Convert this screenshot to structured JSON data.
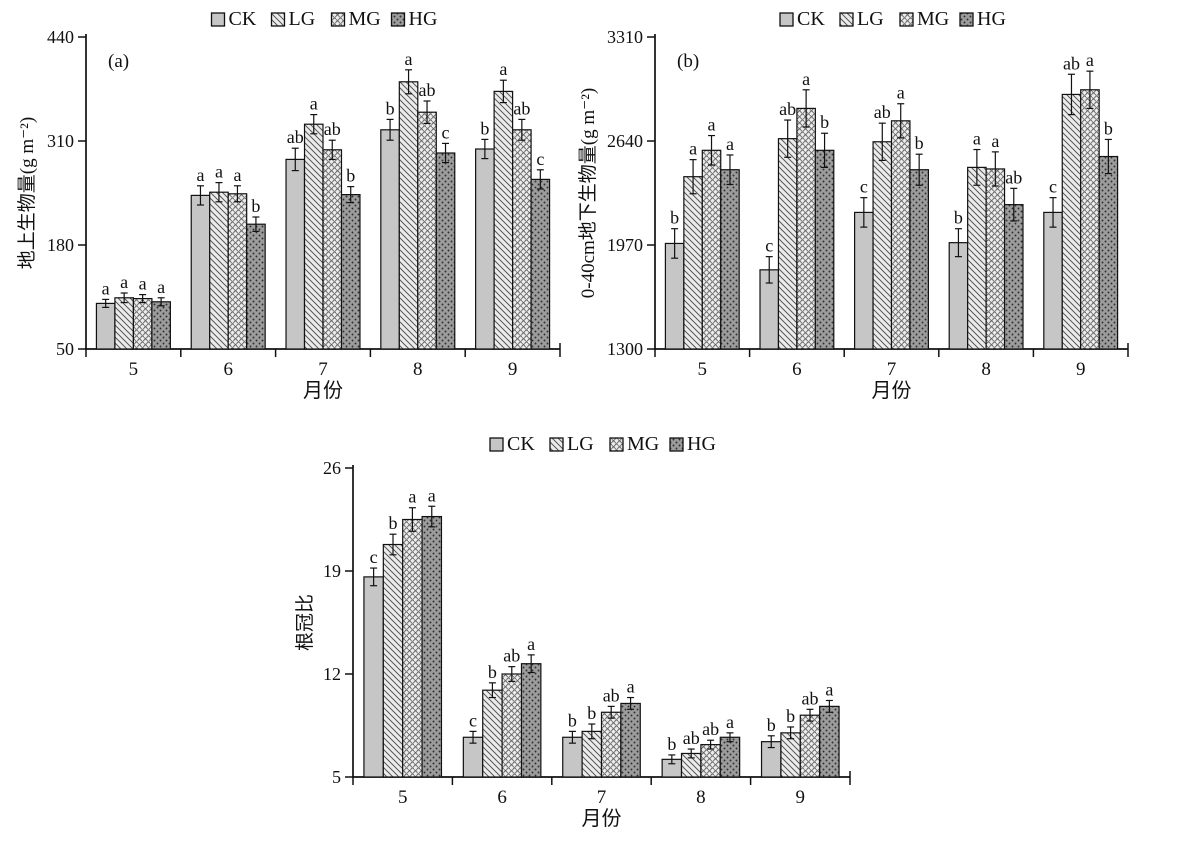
{
  "figure": {
    "background": "#ffffff",
    "axis_color": "#111111",
    "text_color": "#111111"
  },
  "legend": {
    "labels": [
      "CK",
      "LG",
      "MG",
      "HG"
    ]
  },
  "series_styles": [
    {
      "name": "CK",
      "pattern": "plain",
      "bg": "#c6c6c6",
      "fg": "#c6c6c6"
    },
    {
      "name": "LG",
      "pattern": "diagonal",
      "bg": "#ececec",
      "fg": "#575757"
    },
    {
      "name": "MG",
      "pattern": "scales",
      "bg": "#ececec",
      "fg": "#666666"
    },
    {
      "name": "HG",
      "pattern": "dots",
      "bg": "#9c9c9c",
      "fg": "#2f2f2f"
    }
  ],
  "chart_data": [
    {
      "id": "a",
      "type": "bar",
      "panel_label": "(a)",
      "title": "",
      "ylabel": "地上生物量(g m⁻²)",
      "xlabel": "月份",
      "categories": [
        "5",
        "6",
        "7",
        "8",
        "9"
      ],
      "ylim": [
        50,
        440
      ],
      "yticks": [
        50,
        180,
        310,
        440
      ],
      "grid": false,
      "legend_position": "top-center",
      "series": [
        {
          "name": "CK",
          "values": [
            107,
            242,
            287,
            324,
            300
          ],
          "errors": [
            5,
            12,
            14,
            13,
            12
          ],
          "letters": [
            "a",
            "a",
            "ab",
            "b",
            "b"
          ]
        },
        {
          "name": "LG",
          "values": [
            114,
            246,
            331,
            384,
            372
          ],
          "errors": [
            6,
            12,
            12,
            15,
            14
          ],
          "letters": [
            "a",
            "a",
            "a",
            "a",
            "a"
          ]
        },
        {
          "name": "MG",
          "values": [
            113,
            244,
            299,
            346,
            324
          ],
          "errors": [
            5,
            10,
            12,
            14,
            13
          ],
          "letters": [
            "a",
            "a",
            "ab",
            "ab",
            "ab"
          ]
        },
        {
          "name": "HG",
          "values": [
            109,
            206,
            243,
            295,
            262
          ],
          "errors": [
            5,
            9,
            10,
            12,
            12
          ],
          "letters": [
            "a",
            "b",
            "b",
            "c",
            "c"
          ]
        }
      ]
    },
    {
      "id": "b",
      "type": "bar",
      "panel_label": "(b)",
      "title": "",
      "ylabel": "0-40cm地下生物量(g m⁻²)",
      "xlabel": "月份",
      "categories": [
        "5",
        "6",
        "7",
        "8",
        "9"
      ],
      "ylim": [
        1300,
        3310
      ],
      "yticks": [
        1300,
        1970,
        2640,
        3310
      ],
      "grid": false,
      "legend_position": "top-center",
      "series": [
        {
          "name": "CK",
          "values": [
            1980,
            1810,
            2180,
            1985,
            2180
          ],
          "errors": [
            95,
            85,
            95,
            90,
            95
          ],
          "letters": [
            "b",
            "c",
            "c",
            "b",
            "c"
          ]
        },
        {
          "name": "LG",
          "values": [
            2410,
            2655,
            2635,
            2470,
            2940
          ],
          "errors": [
            110,
            120,
            120,
            115,
            130
          ],
          "letters": [
            "a",
            "ab",
            "ab",
            "a",
            "ab"
          ]
        },
        {
          "name": "MG",
          "values": [
            2580,
            2850,
            2770,
            2460,
            2970
          ],
          "errors": [
            95,
            120,
            110,
            110,
            120
          ],
          "letters": [
            "a",
            "a",
            "a",
            "a",
            "a"
          ]
        },
        {
          "name": "HG",
          "values": [
            2455,
            2580,
            2455,
            2230,
            2540
          ],
          "errors": [
            95,
            110,
            100,
            105,
            110
          ],
          "letters": [
            "a",
            "b",
            "b",
            "ab",
            "b"
          ]
        }
      ]
    },
    {
      "id": "c",
      "type": "bar",
      "panel_label": "",
      "title": "",
      "ylabel": "根冠比",
      "xlabel": "月份",
      "categories": [
        "5",
        "6",
        "7",
        "8",
        "9"
      ],
      "ylim": [
        5,
        26
      ],
      "yticks": [
        5,
        12,
        19,
        26
      ],
      "grid": false,
      "legend_position": "top-center",
      "series": [
        {
          "name": "CK",
          "values": [
            18.6,
            7.7,
            7.7,
            6.2,
            7.4
          ],
          "errors": [
            0.6,
            0.4,
            0.4,
            0.3,
            0.4
          ],
          "letters": [
            "c",
            "c",
            "b",
            "b",
            "b"
          ]
        },
        {
          "name": "LG",
          "values": [
            20.8,
            10.9,
            8.1,
            6.6,
            8.0
          ],
          "errors": [
            0.7,
            0.5,
            0.5,
            0.3,
            0.4
          ],
          "letters": [
            "b",
            "b",
            "b",
            "ab",
            "b"
          ]
        },
        {
          "name": "MG",
          "values": [
            22.5,
            12.0,
            9.4,
            7.2,
            9.2
          ],
          "errors": [
            0.8,
            0.5,
            0.4,
            0.3,
            0.4
          ],
          "letters": [
            "a",
            "ab",
            "ab",
            "ab",
            "ab"
          ]
        },
        {
          "name": "HG",
          "values": [
            22.7,
            12.7,
            10.0,
            7.7,
            9.8
          ],
          "errors": [
            0.7,
            0.6,
            0.4,
            0.3,
            0.4
          ],
          "letters": [
            "a",
            "a",
            "a",
            "a",
            "a"
          ]
        }
      ]
    }
  ]
}
